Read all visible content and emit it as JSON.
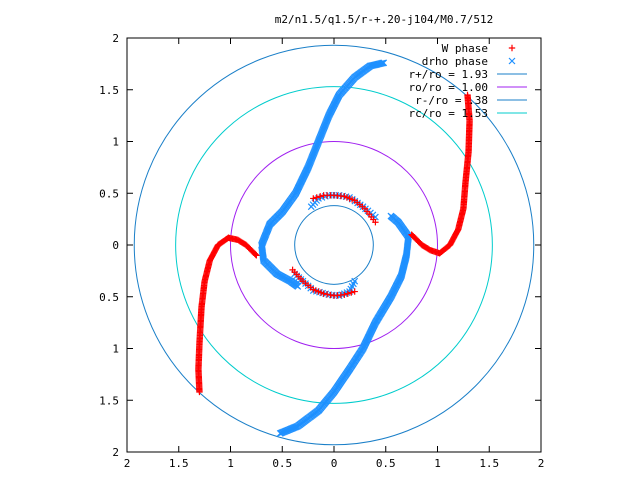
{
  "chart_data": {
    "type": "scatter",
    "title": "m2/n1.5/q1.5/r-+.20-j104/M0.7/512",
    "xlabel": "",
    "ylabel": "",
    "xlim": [
      -2,
      2
    ],
    "ylim": [
      -2,
      2
    ],
    "x_tick_values": [
      -2,
      -1.5,
      -1,
      -0.5,
      0,
      0.5,
      1,
      1.5,
      2
    ],
    "x_tick_labels": [
      "2",
      "1.5",
      "1",
      "0.5",
      "0",
      "0.5",
      "1",
      "1.5",
      "2"
    ],
    "y_tick_values": [
      2,
      1.5,
      1,
      0.5,
      0,
      -0.5,
      -1,
      -1.5,
      -2
    ],
    "y_tick_labels": [
      "2",
      "1.5",
      "1",
      "0.5",
      "0",
      "0.5",
      "1",
      "1.5",
      "2"
    ],
    "grid": false,
    "legend_position": "top-right",
    "series": [
      {
        "name": "W phase",
        "marker": "+",
        "color": "#ff0000",
        "arms": [
          [
            [
              1.29,
              1.45
            ],
            [
              1.31,
              1.2
            ],
            [
              1.3,
              0.9
            ],
            [
              1.27,
              0.6
            ],
            [
              1.25,
              0.35
            ],
            [
              1.2,
              0.15
            ],
            [
              1.12,
              0.0
            ],
            [
              1.02,
              -0.08
            ],
            [
              0.93,
              -0.05
            ],
            [
              0.85,
              0.0
            ],
            [
              0.75,
              0.1
            ]
          ],
          [
            [
              -1.3,
              -1.42
            ],
            [
              -1.31,
              -1.2
            ],
            [
              -1.3,
              -0.95
            ],
            [
              -1.28,
              -0.6
            ],
            [
              -1.25,
              -0.35
            ],
            [
              -1.2,
              -0.15
            ],
            [
              -1.12,
              0.0
            ],
            [
              -1.02,
              0.07
            ],
            [
              -0.93,
              0.05
            ],
            [
              -0.85,
              0.0
            ],
            [
              -0.75,
              -0.1
            ]
          ],
          [
            [
              -0.2,
              0.45
            ],
            [
              -0.1,
              0.48
            ],
            [
              0.0,
              0.48
            ],
            [
              0.1,
              0.47
            ],
            [
              0.2,
              0.43
            ],
            [
              0.3,
              0.35
            ],
            [
              0.4,
              0.22
            ]
          ],
          [
            [
              0.2,
              -0.45
            ],
            [
              0.1,
              -0.48
            ],
            [
              0.0,
              -0.49
            ],
            [
              -0.1,
              -0.47
            ],
            [
              -0.2,
              -0.43
            ],
            [
              -0.3,
              -0.35
            ],
            [
              -0.4,
              -0.24
            ]
          ]
        ]
      },
      {
        "name": "drho phase",
        "marker": "x",
        "color": "#1e90ff",
        "arms": [
          [
            [
              0.48,
              1.76
            ],
            [
              0.35,
              1.73
            ],
            [
              0.2,
              1.62
            ],
            [
              0.05,
              1.45
            ],
            [
              -0.05,
              1.25
            ],
            [
              -0.15,
              1.0
            ],
            [
              -0.25,
              0.75
            ],
            [
              -0.37,
              0.5
            ],
            [
              -0.5,
              0.32
            ],
            [
              -0.62,
              0.2
            ],
            [
              -0.7,
              0.0
            ],
            [
              -0.68,
              -0.15
            ],
            [
              -0.55,
              -0.28
            ],
            [
              -0.42,
              -0.35
            ],
            [
              -0.35,
              -0.4
            ]
          ],
          [
            [
              -0.52,
              -1.82
            ],
            [
              -0.35,
              -1.75
            ],
            [
              -0.15,
              -1.6
            ],
            [
              0.0,
              -1.42
            ],
            [
              0.15,
              -1.2
            ],
            [
              0.28,
              -1.0
            ],
            [
              0.4,
              -0.75
            ],
            [
              0.55,
              -0.5
            ],
            [
              0.65,
              -0.3
            ],
            [
              0.7,
              -0.1
            ],
            [
              0.72,
              0.08
            ],
            [
              0.62,
              0.22
            ],
            [
              0.55,
              0.28
            ]
          ],
          [
            [
              -0.22,
              0.37
            ],
            [
              -0.15,
              0.45
            ],
            [
              -0.05,
              0.48
            ],
            [
              0.05,
              0.48
            ],
            [
              0.15,
              0.46
            ],
            [
              0.28,
              0.37
            ],
            [
              0.4,
              0.27
            ]
          ],
          [
            [
              0.2,
              -0.35
            ],
            [
              0.15,
              -0.45
            ],
            [
              0.05,
              -0.49
            ],
            [
              -0.05,
              -0.48
            ],
            [
              -0.2,
              -0.44
            ],
            [
              -0.3,
              -0.35
            ],
            [
              -0.38,
              -0.28
            ]
          ]
        ]
      }
    ],
    "circles": [
      {
        "name": "r+/ro = 1.93",
        "radius": 1.93,
        "color": "#1a7fc8"
      },
      {
        "name": "ro/ro = 1.00",
        "radius": 1.0,
        "color": "#a020f0"
      },
      {
        "name": "r-/ro = .38",
        "radius": 0.38,
        "color": "#1a7fc8"
      },
      {
        "name": "rc/ro = 1.53",
        "radius": 1.53,
        "color": "#00cccc"
      }
    ]
  }
}
